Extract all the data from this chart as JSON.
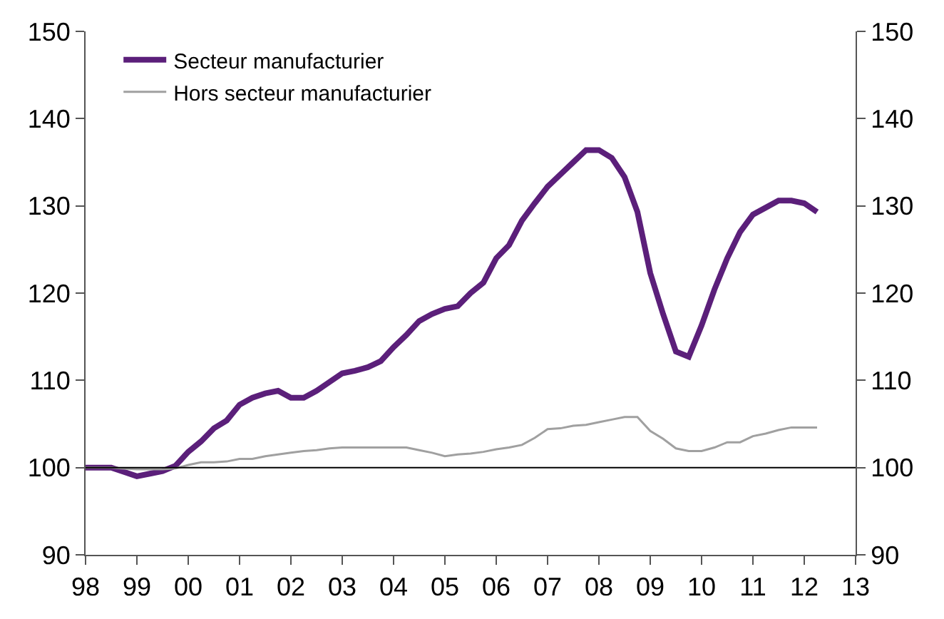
{
  "chart_data": {
    "type": "line",
    "x": [
      1998.0,
      1998.25,
      1998.5,
      1998.75,
      1999.0,
      1999.25,
      1999.5,
      1999.75,
      2000.0,
      2000.25,
      2000.5,
      2000.75,
      2001.0,
      2001.25,
      2001.5,
      2001.75,
      2002.0,
      2002.25,
      2002.5,
      2002.75,
      2003.0,
      2003.25,
      2003.5,
      2003.75,
      2004.0,
      2004.25,
      2004.5,
      2004.75,
      2005.0,
      2005.25,
      2005.5,
      2005.75,
      2006.0,
      2006.25,
      2006.5,
      2006.75,
      2007.0,
      2007.25,
      2007.5,
      2007.75,
      2008.0,
      2008.25,
      2008.5,
      2008.75,
      2009.0,
      2009.25,
      2009.5,
      2009.75,
      2010.0,
      2010.25,
      2010.5,
      2010.75,
      2011.0,
      2011.25,
      2011.5,
      2011.75,
      2012.0,
      2012.25
    ],
    "series": [
      {
        "name": "Secteur manufacturier",
        "color": "#5b1f7a",
        "values": [
          100,
          100,
          100,
          99.5,
          99,
          99.3,
          99.6,
          100.2,
          101.8,
          103,
          104.5,
          105.4,
          107.2,
          108,
          108.5,
          108.8,
          108,
          108,
          108.8,
          109.8,
          110.8,
          111.1,
          111.5,
          112.2,
          113.8,
          115.2,
          116.8,
          117.6,
          118.2,
          118.5,
          120,
          121.2,
          124,
          125.5,
          128.3,
          130.3,
          132.2,
          133.6,
          135,
          136.4,
          136.4,
          135.5,
          133.3,
          129.3,
          122.3,
          117.6,
          113.3,
          112.7,
          116.3,
          120.4,
          124,
          127,
          129,
          129.8,
          130.6,
          130.6,
          130.3,
          129.3
        ]
      },
      {
        "name": "Hors secteur manufacturier",
        "color": "#a0a0a0",
        "values": [
          100,
          100,
          100,
          99.9,
          99.8,
          99.8,
          99.8,
          99.9,
          100.3,
          100.6,
          100.6,
          100.7,
          101,
          101,
          101.3,
          101.5,
          101.7,
          101.9,
          102,
          102.2,
          102.3,
          102.3,
          102.3,
          102.3,
          102.3,
          102.3,
          102,
          101.7,
          101.3,
          101.5,
          101.6,
          101.8,
          102.1,
          102.3,
          102.6,
          103.4,
          104.4,
          104.5,
          104.8,
          104.9,
          105.2,
          105.5,
          105.8,
          105.8,
          104.2,
          103.3,
          102.2,
          101.9,
          101.9,
          102.3,
          102.9,
          102.9,
          103.6,
          103.9,
          104.3,
          104.6,
          104.6,
          104.6
        ]
      }
    ],
    "xlim": [
      1998,
      2013
    ],
    "xticks": [
      {
        "value": 1998,
        "label": "98"
      },
      {
        "value": 1999,
        "label": "99"
      },
      {
        "value": 2000,
        "label": "00"
      },
      {
        "value": 2001,
        "label": "01"
      },
      {
        "value": 2002,
        "label": "02"
      },
      {
        "value": 2003,
        "label": "03"
      },
      {
        "value": 2004,
        "label": "04"
      },
      {
        "value": 2005,
        "label": "05"
      },
      {
        "value": 2006,
        "label": "06"
      },
      {
        "value": 2007,
        "label": "07"
      },
      {
        "value": 2008,
        "label": "08"
      },
      {
        "value": 2009,
        "label": "09"
      },
      {
        "value": 2010,
        "label": "10"
      },
      {
        "value": 2011,
        "label": "11"
      },
      {
        "value": 2012,
        "label": "12"
      },
      {
        "value": 2013,
        "label": "13"
      }
    ],
    "ylim": [
      90,
      150
    ],
    "yticks": [
      90,
      100,
      110,
      120,
      130,
      140,
      150
    ],
    "y2lim": [
      90,
      150
    ],
    "y2ticks": [
      90,
      100,
      110,
      120,
      130,
      140,
      150
    ],
    "ref_lines": [
      {
        "axis": "y",
        "value": 100,
        "color": "#000000"
      }
    ],
    "legend": "top left",
    "grid": false,
    "marker": "none",
    "line_style": "solid"
  }
}
